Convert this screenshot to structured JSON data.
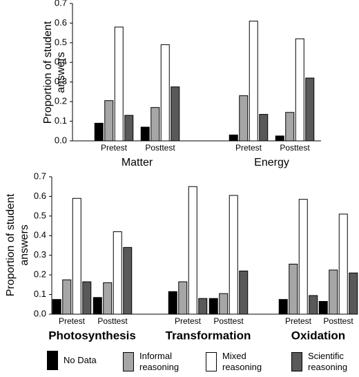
{
  "chart_data": [
    {
      "type": "bar",
      "groups": [
        "Matter",
        "Energy"
      ],
      "categories": [
        "Pretest",
        "Posttest",
        "Pretest",
        "Posttest"
      ],
      "ylabel": [
        "Proportion of student",
        "answers"
      ],
      "ylim": [
        0,
        0.7
      ],
      "yticks": [
        {
          "value": 0,
          "label": "0.0"
        },
        0.1,
        0.2,
        0.3,
        0.4,
        0.5,
        0.6,
        0.7
      ],
      "series": [
        {
          "color": "#000000",
          "values": [
            0.09,
            0.07,
            0.03,
            0.025
          ]
        },
        {
          "color": "#a6a6a6",
          "values": [
            0.205,
            0.17,
            0.23,
            0.145
          ]
        },
        {
          "color": "#ffffff",
          "values": [
            0.58,
            0.49,
            0.61,
            0.52
          ]
        },
        {
          "color": "#595959",
          "values": [
            0.13,
            0.275,
            0.135,
            0.32
          ]
        }
      ]
    },
    {
      "type": "bar",
      "groups": [
        "Photosynthesis",
        "Transformation",
        "Oxidation"
      ],
      "categories": [
        "Pretest",
        "Posttest",
        "Pretest",
        "Posttest",
        "Pretest",
        "Posttest"
      ],
      "ylabel": [
        "Proportion of student",
        "answers"
      ],
      "ylim": [
        0,
        0.7
      ],
      "yticks": [
        {
          "value": 0,
          "label": "0.0"
        },
        0.1,
        0.2,
        0.3,
        0.4,
        0.5,
        0.6,
        0.7
      ],
      "legend": "bottom",
      "series": [
        {
          "name": "No Data",
          "color": "#000000",
          "values": [
            0.075,
            0.085,
            0.115,
            0.08,
            0.075,
            0.065
          ]
        },
        {
          "name": "Informal reasoning",
          "color": "#a6a6a6",
          "values": [
            0.175,
            0.16,
            0.165,
            0.105,
            0.255,
            0.225
          ]
        },
        {
          "name": "Mixed reasoning",
          "color": "#ffffff",
          "values": [
            0.59,
            0.42,
            0.65,
            0.605,
            0.585,
            0.51
          ]
        },
        {
          "name": "Scientific reasoning",
          "color": "#595959",
          "values": [
            0.165,
            0.34,
            0.08,
            0.22,
            0.095,
            0.21
          ]
        }
      ]
    }
  ]
}
